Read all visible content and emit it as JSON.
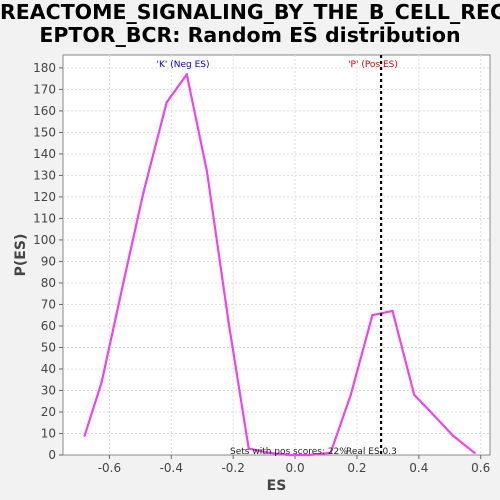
{
  "title_line1": "REACTOME_SIGNALING_BY_THE_B_CELL_REC",
  "title_line2": "EPTOR_BCR: Random ES distribution",
  "chart_data": {
    "type": "line",
    "title": "REACTOME_SIGNALING_BY_THE_B_CELL_RECEPTOR_BCR: Random ES distribution",
    "xlabel": "ES",
    "ylabel": "P(ES)",
    "xlim": [
      -0.75,
      0.63
    ],
    "ylim": [
      0,
      186
    ],
    "x_ticks": [
      -0.6,
      -0.4,
      -0.2,
      0.0,
      0.2,
      0.4,
      0.6
    ],
    "x_tick_labels": [
      "-0.6",
      "-0.4",
      "-0.2",
      "0.0",
      "0.2",
      "0.4",
      "0.6"
    ],
    "y_ticks": [
      0,
      10,
      20,
      30,
      40,
      50,
      60,
      70,
      80,
      90,
      100,
      110,
      120,
      130,
      140,
      150,
      160,
      170,
      180
    ],
    "grid": true,
    "series": [
      {
        "color": "#ee44ee",
        "x": [
          -0.68,
          -0.625,
          -0.555,
          -0.49,
          -0.415,
          -0.35,
          -0.285,
          -0.215,
          -0.15,
          -0.085,
          -0.02,
          0.045,
          0.115,
          0.18,
          0.25,
          0.315,
          0.385,
          0.445,
          0.51,
          0.58
        ],
        "y": [
          9,
          34,
          80,
          122,
          164,
          177,
          132,
          62,
          3,
          1,
          0,
          0,
          1,
          28,
          65,
          67,
          28,
          19,
          9,
          1
        ]
      }
    ],
    "vline": {
      "x": 0.278,
      "color": "#000000",
      "style": "dotted"
    },
    "annotations": {
      "neg_label": "'K' (Neg ES)",
      "neg_color": "#0000dd",
      "pos_label": "'P' (Pos ES)",
      "pos_color": "#dd0000",
      "pos_scores": "Sets with pos scores: 22%",
      "real_es": "Real ES 0.3"
    }
  }
}
